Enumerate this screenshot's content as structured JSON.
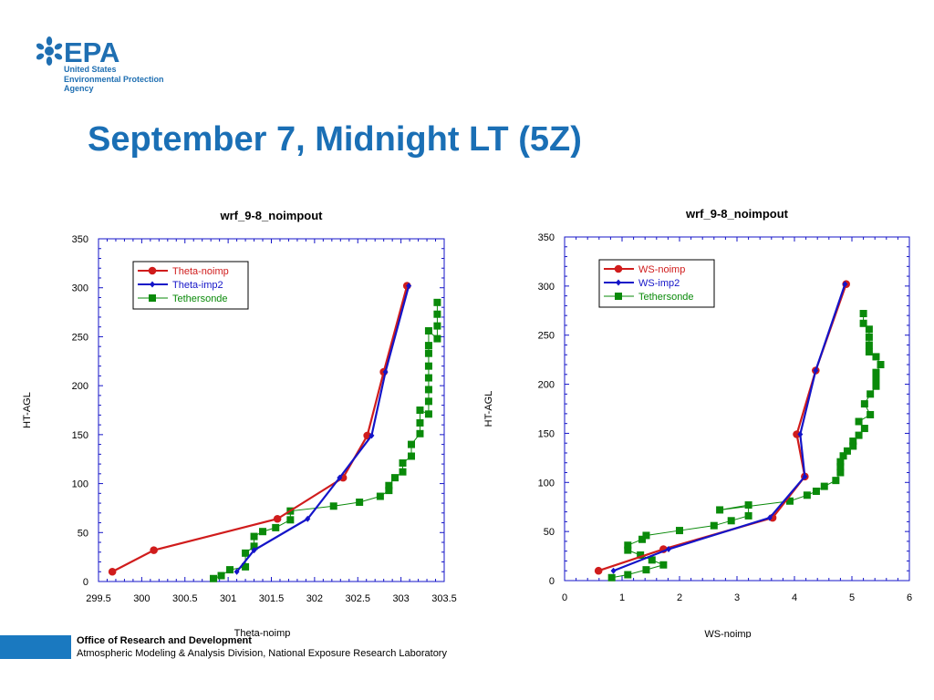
{
  "logo": {
    "name": "EPA",
    "lines": [
      "United States",
      "Environmental Protection",
      "Agency"
    ]
  },
  "slide_title": "September 7, Midnight LT (5Z)",
  "footer": {
    "office": "Office of Research and Development",
    "division": "Atmospheric Modeling & Analysis Division, National Exposure Research Laboratory"
  },
  "colors": {
    "red": "#d01c1c",
    "blue": "#1414c8",
    "green": "#0a8a0a",
    "title_blue": "#1a6fb5"
  },
  "chart_data": [
    {
      "type": "line",
      "title": "wrf_9-8_noimpout",
      "xlabel": "Theta-noimp",
      "ylabel": "HT-AGL",
      "xlim": [
        299.5,
        303.5
      ],
      "ylim": [
        0,
        350
      ],
      "xticks": [
        299.5,
        300,
        300.5,
        301,
        301.5,
        302,
        302.5,
        303,
        303.5
      ],
      "xtick_labels": [
        "299.5",
        "300",
        "300.5",
        "301",
        "301.5",
        "302",
        "302.5",
        "303",
        "303.5"
      ],
      "yticks": [
        0,
        50,
        100,
        150,
        200,
        250,
        300,
        350
      ],
      "ytick_labels": [
        "0",
        "50",
        "100",
        "150",
        "200",
        "250",
        "300",
        "350"
      ],
      "legend_position": "top-left",
      "series": [
        {
          "name": "Theta-noimp",
          "color": "#d01c1c",
          "marker": "circle",
          "x": [
            299.66,
            300.14,
            301.57,
            302.33,
            302.61,
            302.8,
            303.07
          ],
          "y": [
            10,
            32,
            64,
            106,
            149,
            214,
            302
          ]
        },
        {
          "name": "Theta-imp2",
          "color": "#1414c8",
          "marker": "diamond",
          "x": [
            301.1,
            301.3,
            301.92,
            302.29,
            302.66,
            302.82,
            303.09
          ],
          "y": [
            10,
            32,
            64,
            106,
            149,
            214,
            302
          ]
        },
        {
          "name": "Tethersonde",
          "color": "#0a8a0a",
          "marker": "square",
          "x": [
            300.83,
            300.92,
            301.02,
            301.2,
            301.2,
            301.3,
            301.3,
            301.4,
            301.55,
            301.72,
            301.72,
            302.22,
            302.52,
            302.76,
            302.86,
            302.86,
            302.93,
            303.02,
            303.02,
            303.12,
            303.12,
            303.22,
            303.22,
            303.22,
            303.32,
            303.32,
            303.32,
            303.32,
            303.32,
            303.32,
            303.32,
            303.32,
            303.42,
            303.42,
            303.42,
            303.42
          ],
          "y": [
            3,
            6,
            12,
            15,
            29,
            36,
            46,
            51,
            55,
            63,
            72,
            77,
            81,
            87,
            93,
            98,
            106,
            112,
            121,
            128,
            140,
            151,
            162,
            175,
            171,
            184,
            196,
            208,
            220,
            233,
            241,
            256,
            248,
            261,
            273,
            285
          ]
        }
      ]
    },
    {
      "type": "line",
      "title": "wrf_9-8_noimpout",
      "xlabel": "WS-noimp",
      "ylabel": "HT-AGL",
      "xlim": [
        0,
        6
      ],
      "ylim": [
        0,
        350
      ],
      "xticks": [
        0,
        1,
        2,
        3,
        4,
        5,
        6
      ],
      "xtick_labels": [
        "0",
        "1",
        "2",
        "3",
        "4",
        "5",
        "6"
      ],
      "yticks": [
        0,
        50,
        100,
        150,
        200,
        250,
        300,
        350
      ],
      "ytick_labels": [
        "0",
        "50",
        "100",
        "150",
        "200",
        "250",
        "300",
        "350"
      ],
      "legend_position": "top-left",
      "series": [
        {
          "name": "WS-noimp",
          "color": "#d01c1c",
          "marker": "circle",
          "x": [
            0.59,
            1.72,
            3.62,
            4.18,
            4.04,
            4.37,
            4.9
          ],
          "y": [
            10,
            32,
            64,
            106,
            149,
            214,
            302
          ]
        },
        {
          "name": "WS-imp2",
          "color": "#1414c8",
          "marker": "diamond",
          "x": [
            0.85,
            1.81,
            3.57,
            4.18,
            4.1,
            4.37,
            4.88
          ],
          "y": [
            10,
            32,
            64,
            106,
            149,
            214,
            302
          ]
        },
        {
          "name": "Tethersonde",
          "color": "#0a8a0a",
          "marker": "square",
          "x": [
            0.82,
            1.1,
            1.42,
            1.72,
            1.52,
            1.32,
            1.1,
            1.1,
            1.35,
            1.42,
            2.0,
            2.6,
            2.9,
            3.2,
            3.2,
            2.7,
            3.92,
            4.22,
            4.38,
            4.52,
            4.72,
            4.8,
            4.8,
            4.8,
            4.85,
            4.92,
            5.02,
            5.02,
            5.12,
            5.22,
            5.12,
            5.32,
            5.22,
            5.32,
            5.42,
            5.42,
            5.42,
            5.5,
            5.42,
            5.3,
            5.3,
            5.3,
            5.3,
            5.2,
            5.2
          ],
          "y": [
            3,
            6,
            11,
            16,
            21,
            26,
            31,
            36,
            42,
            46,
            51,
            56,
            61,
            66,
            77,
            72,
            81,
            87,
            91,
            96,
            102,
            110,
            116,
            121,
            127,
            132,
            137,
            142,
            148,
            155,
            162,
            169,
            180,
            190,
            198,
            205,
            212,
            220,
            228,
            233,
            240,
            248,
            256,
            262,
            272
          ]
        }
      ]
    }
  ]
}
